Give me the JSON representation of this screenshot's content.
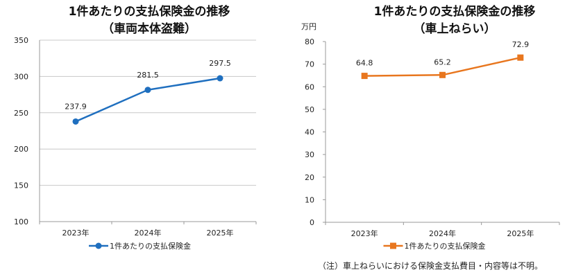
{
  "chart_data": [
    {
      "type": "line",
      "title": "1件あたりの支払保険金の推移",
      "subtitle": "（車両本体盗難）",
      "ylabel": "",
      "categories": [
        "2023年",
        "2024年",
        "2025年"
      ],
      "series": [
        {
          "name": "1件あたりの支払保険金",
          "values": [
            237.9,
            281.5,
            297.5
          ],
          "color": "#1f6fbf",
          "marker": "circle"
        }
      ],
      "data_labels": [
        "237.9",
        "281.5",
        "297.5"
      ],
      "ylim": [
        100,
        350
      ],
      "yticks": [
        100,
        150,
        200,
        250,
        300,
        350
      ],
      "grid": true,
      "legend": "bottom"
    },
    {
      "type": "line",
      "title": "1件あたりの支払保険金の推移",
      "subtitle": "（車上ねらい）",
      "ylabel": "万円",
      "categories": [
        "2023年",
        "2024年",
        "2025年"
      ],
      "series": [
        {
          "name": "1件あたりの支払保険金",
          "values": [
            64.8,
            65.2,
            72.9
          ],
          "color": "#e8761e",
          "marker": "square"
        }
      ],
      "data_labels": [
        "64.8",
        "65.2",
        "72.9"
      ],
      "ylim": [
        0,
        80
      ],
      "yticks": [
        0,
        10,
        20,
        30,
        40,
        50,
        60,
        70,
        80
      ],
      "grid": false,
      "legend": "bottom"
    }
  ],
  "note": "（注）車上ねらいにおける保険金支払費目・内容等は不明。"
}
